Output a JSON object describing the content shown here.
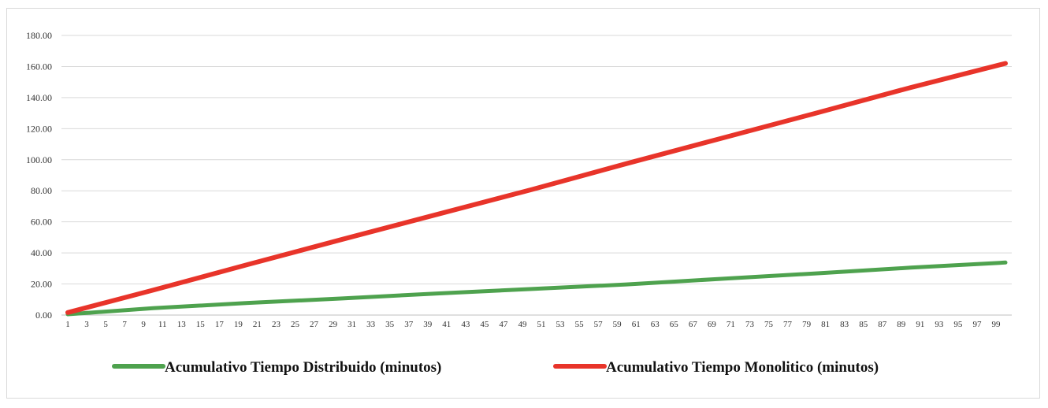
{
  "chart_data": {
    "type": "line",
    "title": "",
    "xlabel": "",
    "ylabel": "",
    "x_start": 1,
    "x_end": 100,
    "x_tick_labels": [
      "1",
      "3",
      "5",
      "7",
      "9",
      "11",
      "13",
      "15",
      "17",
      "19",
      "21",
      "23",
      "25",
      "27",
      "29",
      "31",
      "33",
      "35",
      "37",
      "39",
      "41",
      "43",
      "45",
      "47",
      "49",
      "51",
      "53",
      "55",
      "57",
      "59",
      "61",
      "63",
      "65",
      "67",
      "69",
      "71",
      "73",
      "75",
      "77",
      "79",
      "81",
      "83",
      "85",
      "87",
      "89",
      "91",
      "93",
      "95",
      "97",
      "99"
    ],
    "ylim": [
      0,
      180
    ],
    "y_tick_labels": [
      "0.00",
      "20.00",
      "40.00",
      "60.00",
      "80.00",
      "100.00",
      "120.00",
      "140.00",
      "160.00",
      "180.00"
    ],
    "y_ticks": [
      0,
      20,
      40,
      60,
      80,
      100,
      120,
      140,
      160,
      180
    ],
    "grid": true,
    "legend_position": "bottom",
    "series": [
      {
        "name": "Acumulativo Tiempo Distribuido (minutos)",
        "color": "#4ea24e",
        "x": [
          1,
          10,
          20,
          30,
          40,
          50,
          60,
          70,
          80,
          90,
          100
        ],
        "values": [
          0.5,
          4.4,
          7.8,
          10.7,
          13.9,
          16.8,
          19.7,
          23.3,
          26.8,
          30.5,
          33.8
        ]
      },
      {
        "name": "Acumulativo Tiempo Monolitico (minutos)",
        "color": "#e8342a",
        "x": [
          1,
          10,
          20,
          30,
          40,
          50,
          60,
          70,
          80,
          90,
          100
        ],
        "values": [
          1.6,
          16.0,
          32.5,
          48.8,
          64.8,
          80.8,
          97.5,
          113.8,
          130.0,
          146.5,
          162.0
        ]
      }
    ]
  }
}
